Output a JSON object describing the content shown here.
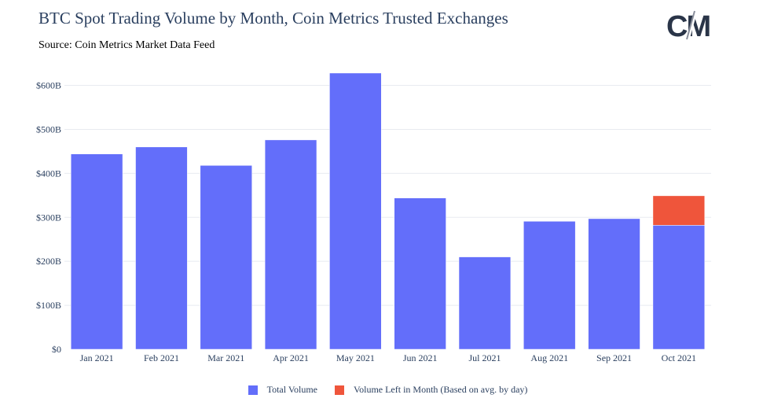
{
  "header": {
    "title": "BTC Spot Trading Volume by Month, Coin Metrics Trusted Exchanges",
    "subtitle": "Source: Coin Metrics Market Data Feed",
    "logo_text": "CM"
  },
  "colors": {
    "total": "#636efa",
    "left": "#ef553b",
    "grid": "#e8ebf0",
    "text": "#2a3f5f"
  },
  "chart_data": {
    "type": "bar",
    "stacked": true,
    "categories": [
      "Jan 2021",
      "Feb 2021",
      "Mar 2021",
      "Apr 2021",
      "May 2021",
      "Jun 2021",
      "Jul 2021",
      "Aug 2021",
      "Sep 2021",
      "Oct 2021"
    ],
    "series": [
      {
        "name": "Total Volume",
        "color": "#636efa",
        "values": [
          444,
          460,
          418,
          476,
          628,
          344,
          210,
          291,
          297,
          282
        ]
      },
      {
        "name": "Volume Left in Month (Based on avg. by day)",
        "color": "#ef553b",
        "values": [
          0,
          0,
          0,
          0,
          0,
          0,
          0,
          0,
          0,
          67
        ]
      }
    ],
    "ylim": [
      0,
      660
    ],
    "yticks": [
      {
        "value": 0,
        "label": "$0"
      },
      {
        "value": 100,
        "label": "$100B"
      },
      {
        "value": 200,
        "label": "$200B"
      },
      {
        "value": 300,
        "label": "$300B"
      },
      {
        "value": 400,
        "label": "$400B"
      },
      {
        "value": 500,
        "label": "$500B"
      },
      {
        "value": 600,
        "label": "$600B"
      }
    ],
    "grid": true,
    "legend_position": "bottom-center"
  }
}
